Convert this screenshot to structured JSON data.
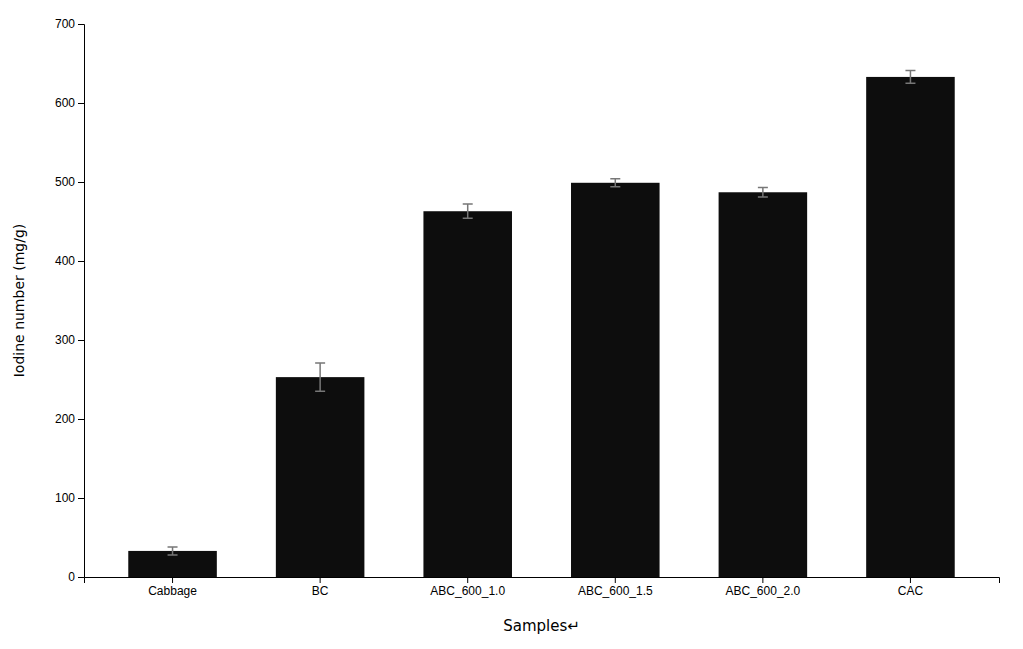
{
  "chart_data": {
    "type": "bar",
    "categories": [
      "Cabbage",
      "BC",
      "ABC_600_1.0",
      "ABC_600_1.5",
      "ABC_600_2.0",
      "CAC"
    ],
    "values": [
      33,
      253,
      463,
      499,
      487,
      633
    ],
    "errors": [
      5,
      18,
      9,
      5,
      6,
      8
    ],
    "color": "#0d0d0d",
    "xlabel": "Samples↵",
    "ylabel": "Iodine number (mg/g)",
    "ylim": [
      0,
      700
    ],
    "yticks": [
      0,
      100,
      200,
      300,
      400,
      500,
      600,
      700
    ],
    "grid": false
  }
}
